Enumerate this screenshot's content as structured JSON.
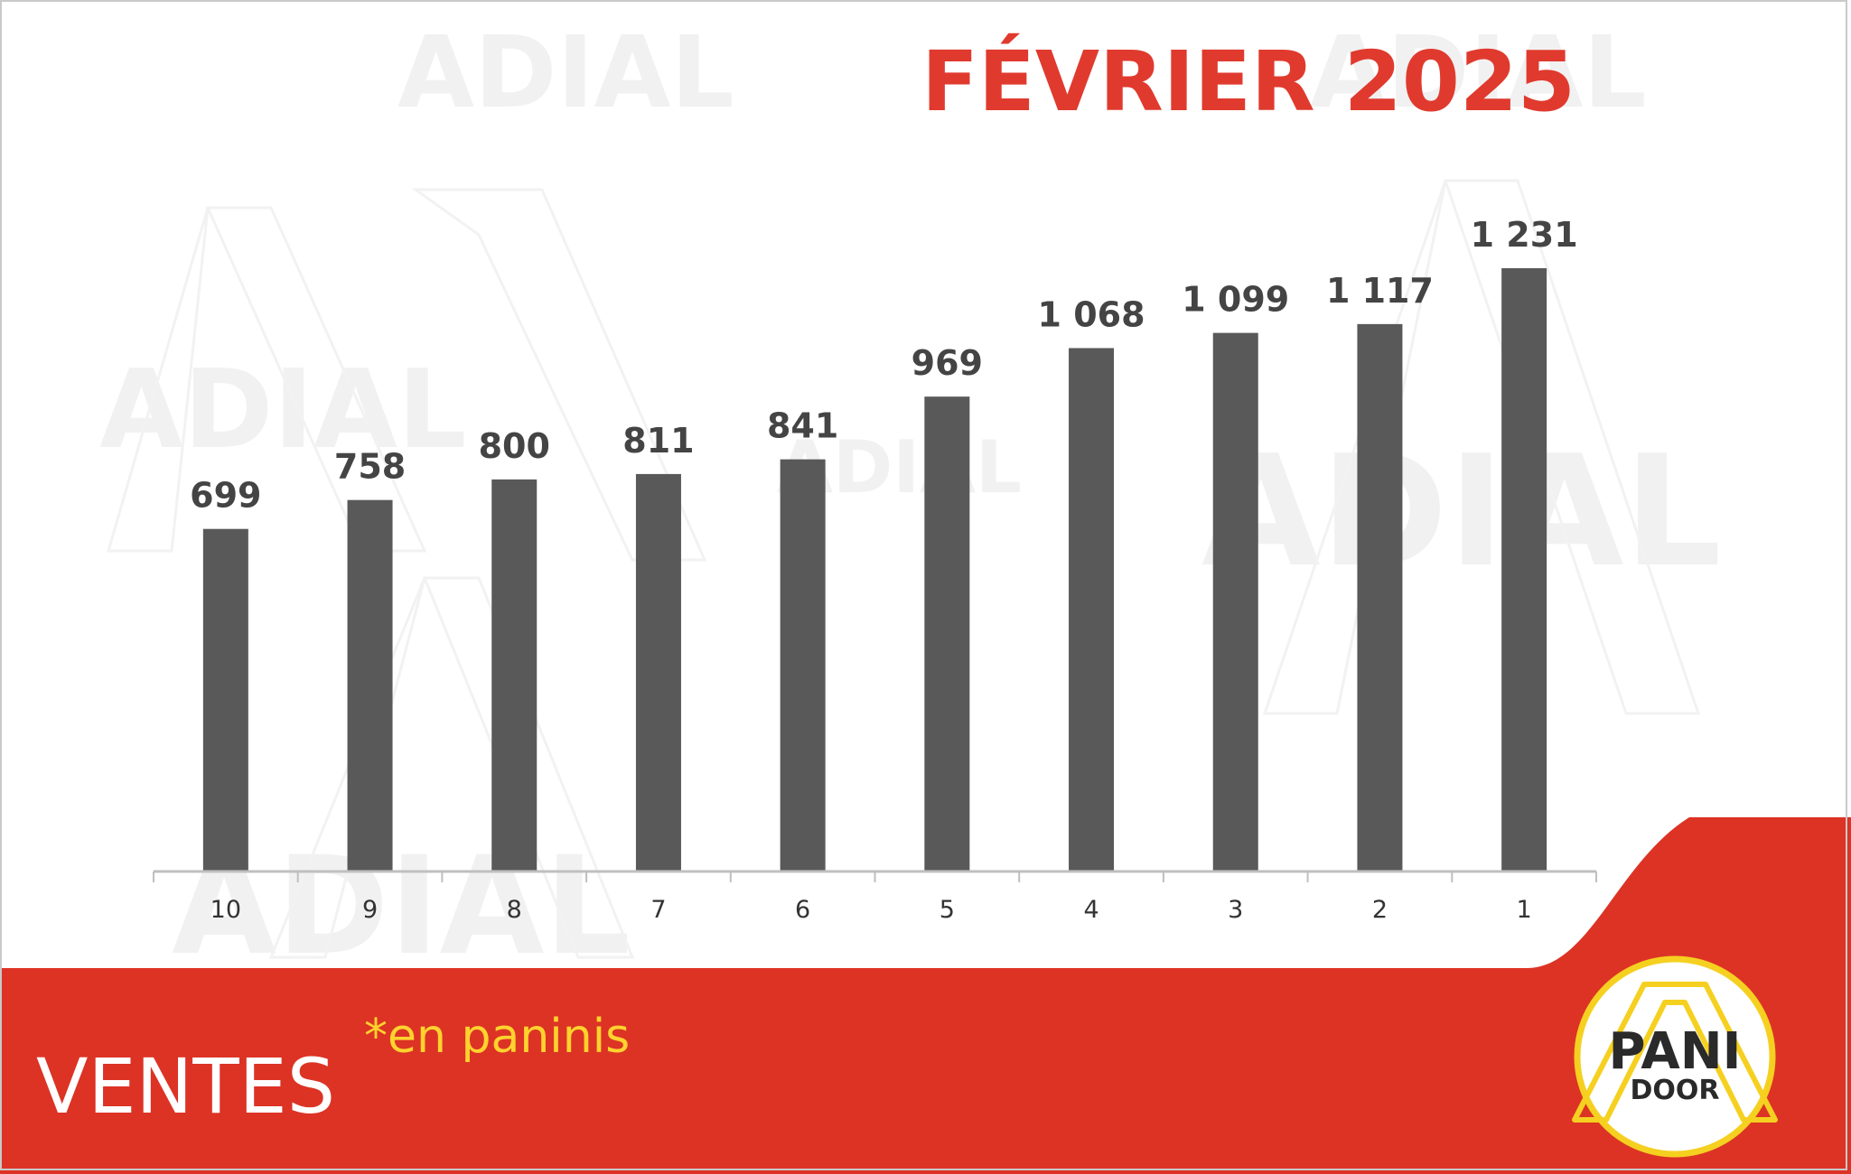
{
  "title": "FÉVRIER 2025",
  "watermark": "ADIAL",
  "footer": {
    "label": "VENTES",
    "note": "*en paninis"
  },
  "logo": {
    "line1": "PANI",
    "line2": "DOOR"
  },
  "colors": {
    "bar": "#595959",
    "title": "#e03a2e",
    "banner": "#dc3325",
    "note": "#ffd22e",
    "logo_ring": "#f5d020"
  },
  "chart_data": {
    "type": "bar",
    "title": "FÉVRIER 2025",
    "xlabel": "",
    "ylabel": "",
    "categories": [
      "10",
      "9",
      "8",
      "7",
      "6",
      "5",
      "4",
      "3",
      "2",
      "1"
    ],
    "values": [
      699,
      758,
      800,
      811,
      841,
      969,
      1068,
      1099,
      1117,
      1231
    ],
    "value_labels": [
      "699",
      "758",
      "800",
      "811",
      "841",
      "969",
      "1 068",
      "1 099",
      "1 117",
      "1 231"
    ],
    "ylim": [
      0,
      1300
    ],
    "grid": false,
    "legend": "none"
  }
}
